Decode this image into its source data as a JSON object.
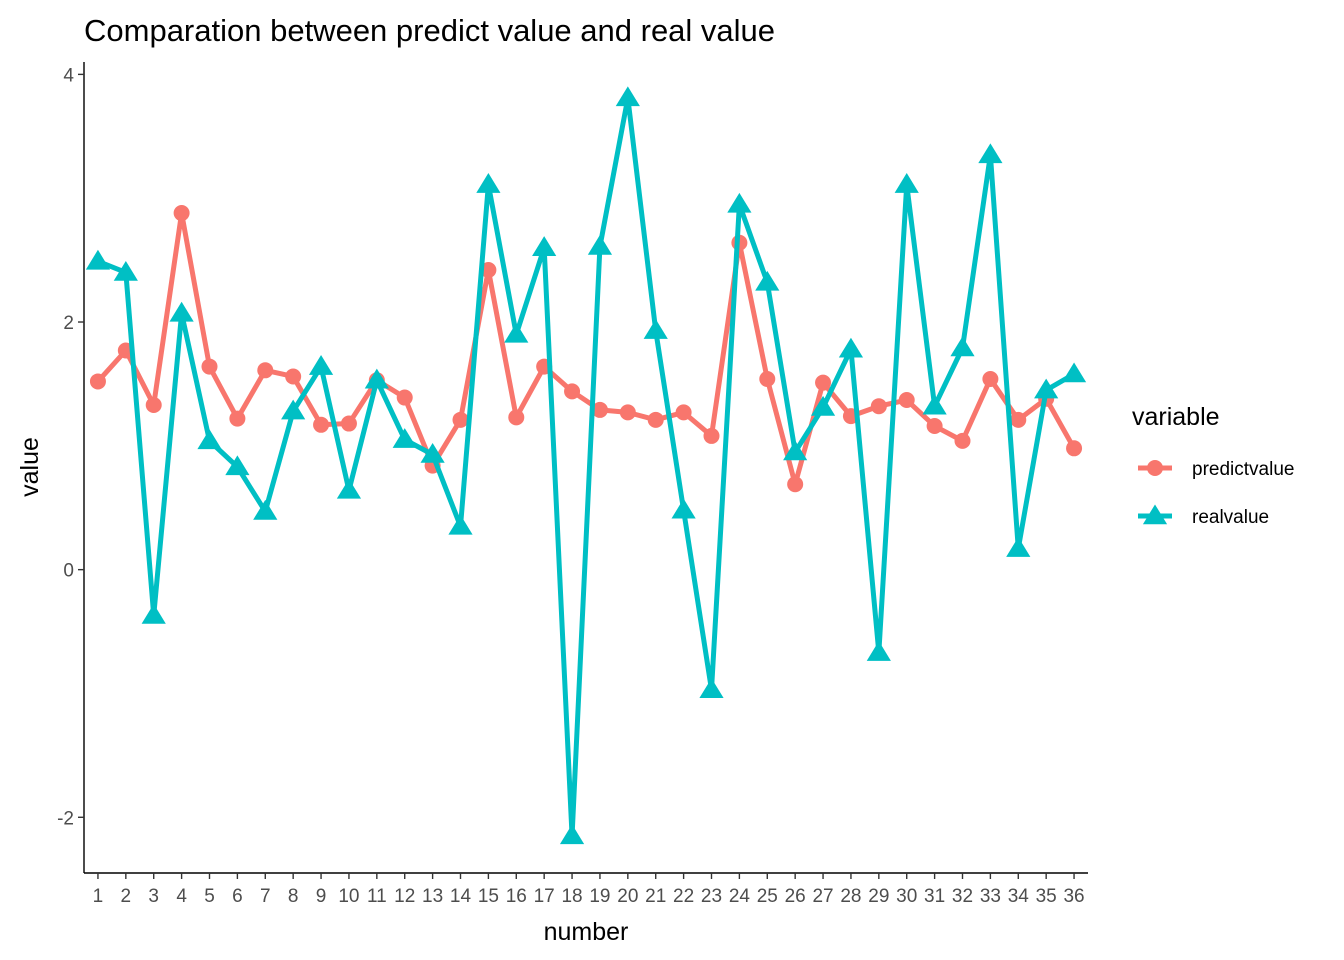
{
  "chart_data": {
    "type": "line",
    "title": "Comparation between predict value and real value",
    "xlabel": "number",
    "ylabel": "value",
    "x": [
      1,
      2,
      3,
      4,
      5,
      6,
      7,
      8,
      9,
      10,
      11,
      12,
      13,
      14,
      15,
      16,
      17,
      18,
      19,
      20,
      21,
      22,
      23,
      24,
      25,
      26,
      27,
      28,
      29,
      30,
      31,
      32,
      33,
      34,
      35,
      36
    ],
    "xlim": [
      0.5,
      36.5
    ],
    "ylim": [
      -2.45,
      4.1
    ],
    "yticks": [
      -2,
      0,
      2,
      4
    ],
    "grid": false,
    "legend": {
      "title": "variable",
      "position": "right"
    },
    "series": [
      {
        "name": "predictvalue",
        "color": "#F8766D",
        "marker": "circle",
        "values": [
          1.52,
          1.77,
          1.33,
          2.88,
          1.64,
          1.22,
          1.61,
          1.56,
          1.17,
          1.18,
          1.53,
          1.39,
          0.84,
          1.21,
          2.42,
          1.23,
          1.64,
          1.44,
          1.29,
          1.27,
          1.21,
          1.27,
          1.08,
          2.64,
          1.54,
          0.69,
          1.51,
          1.24,
          1.32,
          1.37,
          1.16,
          1.04,
          1.54,
          1.21,
          1.38,
          0.98
        ]
      },
      {
        "name": "realvalue",
        "color": "#00BFC4",
        "marker": "triangle",
        "values": [
          2.49,
          2.4,
          -0.37,
          2.07,
          1.04,
          0.83,
          0.47,
          1.28,
          1.64,
          0.64,
          1.53,
          1.05,
          0.93,
          0.35,
          3.11,
          1.9,
          2.6,
          -2.15,
          2.61,
          3.81,
          1.93,
          0.48,
          -0.97,
          2.95,
          2.32,
          0.95,
          1.31,
          1.78,
          -0.67,
          3.11,
          1.32,
          1.79,
          3.35,
          0.17,
          1.45,
          1.58
        ]
      }
    ]
  }
}
